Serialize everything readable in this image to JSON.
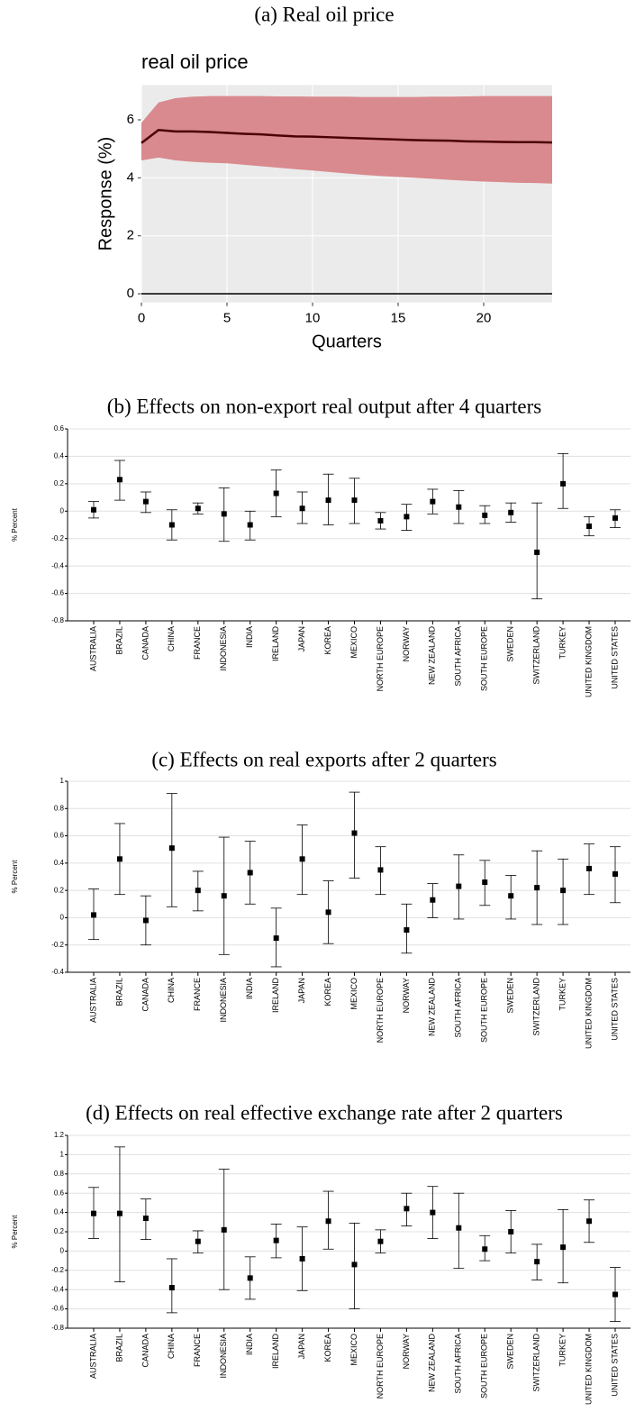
{
  "chart_data": [
    {
      "type": "line",
      "caption": "(a) Real oil price",
      "title": "real oil price",
      "y_label": "Response (%)",
      "x_label": "Quarters",
      "x": [
        0,
        1,
        2,
        3,
        4,
        5,
        6,
        7,
        8,
        9,
        10,
        11,
        12,
        13,
        14,
        15,
        16,
        17,
        18,
        19,
        20,
        21,
        22,
        23,
        24
      ],
      "values": [
        5.2,
        5.65,
        5.6,
        5.6,
        5.58,
        5.55,
        5.52,
        5.5,
        5.46,
        5.43,
        5.42,
        5.4,
        5.38,
        5.36,
        5.34,
        5.32,
        5.3,
        5.29,
        5.28,
        5.26,
        5.25,
        5.24,
        5.23,
        5.23,
        5.22
      ],
      "upper": [
        5.9,
        6.6,
        6.75,
        6.8,
        6.82,
        6.82,
        6.82,
        6.82,
        6.81,
        6.81,
        6.8,
        6.8,
        6.8,
        6.79,
        6.79,
        6.79,
        6.79,
        6.8,
        6.8,
        6.81,
        6.82,
        6.82,
        6.82,
        6.82,
        6.82
      ],
      "lower": [
        4.6,
        4.7,
        4.6,
        4.55,
        4.52,
        4.5,
        4.45,
        4.4,
        4.35,
        4.3,
        4.25,
        4.2,
        4.15,
        4.1,
        4.06,
        4.03,
        4.0,
        3.97,
        3.93,
        3.9,
        3.87,
        3.85,
        3.83,
        3.82,
        3.8
      ],
      "color": "#4a0000",
      "band_color": "#d98a8e",
      "hline": 0,
      "xlim": [
        0,
        24
      ],
      "xticks": [
        0,
        5,
        10,
        15,
        20
      ],
      "ylim": [
        -0.3,
        7.2
      ],
      "yticks": [
        0,
        2,
        4,
        6
      ]
    },
    {
      "type": "errorbar",
      "caption": "(b) Effects on non-export real output after 4 quarters",
      "y_label": "% Percent",
      "categories": [
        "AUSTRALIA",
        "BRAZIL",
        "CANADA",
        "CHINA",
        "FRANCE",
        "INDONESIA",
        "INDIA",
        "IRELAND",
        "JAPAN",
        "KOREA",
        "MEXICO",
        "NORTH EUROPE",
        "NORWAY",
        "NEW ZEALAND",
        "SOUTH AFRICA",
        "SOUTH EUROPE",
        "SWEDEN",
        "SWITZERLAND",
        "TURKEY",
        "UNITED KINGDOM",
        "UNITED STATES"
      ],
      "values": [
        0.01,
        0.23,
        0.07,
        -0.1,
        0.02,
        -0.02,
        -0.1,
        0.13,
        0.02,
        0.08,
        0.08,
        -0.07,
        -0.04,
        0.07,
        0.03,
        -0.03,
        -0.01,
        -0.3,
        0.2,
        -0.11,
        -0.05
      ],
      "lower": [
        -0.05,
        0.08,
        -0.01,
        -0.21,
        -0.02,
        -0.22,
        -0.21,
        -0.04,
        -0.09,
        -0.1,
        -0.09,
        -0.13,
        -0.14,
        -0.02,
        -0.09,
        -0.09,
        -0.08,
        -0.64,
        0.02,
        -0.18,
        -0.12
      ],
      "upper": [
        0.07,
        0.37,
        0.14,
        0.01,
        0.06,
        0.17,
        0.0,
        0.3,
        0.14,
        0.27,
        0.24,
        -0.01,
        0.05,
        0.16,
        0.15,
        0.04,
        0.06,
        0.06,
        0.42,
        -0.04,
        0.01
      ],
      "color": "#000000",
      "ylim": [
        -0.8,
        0.6
      ],
      "yticks": [
        -0.8,
        -0.6,
        -0.4,
        -0.2,
        0,
        0.2,
        0.4,
        0.6
      ],
      "grid": true
    },
    {
      "type": "errorbar",
      "caption": "(c) Effects on real exports after 2 quarters",
      "y_label": "% Percent",
      "categories": [
        "AUSTRALIA",
        "BRAZIL",
        "CANADA",
        "CHINA",
        "FRANCE",
        "INDONESIA",
        "INDIA",
        "IRELAND",
        "JAPAN",
        "KOREA",
        "MEXICO",
        "NORTH EUROPE",
        "NORWAY",
        "NEW ZEALAND",
        "SOUTH AFRICA",
        "SOUTH EUROPE",
        "SWEDEN",
        "SWITZERLAND",
        "TURKEY",
        "UNITED KINGDOM",
        "UNITED STATES"
      ],
      "values": [
        0.02,
        0.43,
        -0.02,
        0.51,
        0.2,
        0.16,
        0.33,
        -0.15,
        0.43,
        0.04,
        0.62,
        0.35,
        -0.09,
        0.13,
        0.23,
        0.26,
        0.16,
        0.22,
        0.2,
        0.36,
        0.32
      ],
      "lower": [
        -0.16,
        0.17,
        -0.2,
        0.08,
        0.05,
        -0.27,
        0.1,
        -0.36,
        0.17,
        -0.19,
        0.29,
        0.17,
        -0.26,
        0.0,
        -0.01,
        0.09,
        -0.01,
        -0.05,
        -0.05,
        0.17,
        0.11
      ],
      "upper": [
        0.21,
        0.69,
        0.16,
        0.91,
        0.34,
        0.59,
        0.56,
        0.07,
        0.68,
        0.27,
        0.92,
        0.52,
        0.1,
        0.25,
        0.46,
        0.42,
        0.31,
        0.49,
        0.43,
        0.54,
        0.52
      ],
      "color": "#000000",
      "ylim": [
        -0.4,
        1
      ],
      "yticks": [
        -0.4,
        -0.2,
        0,
        0.2,
        0.4,
        0.6,
        0.8,
        1
      ],
      "grid": true
    },
    {
      "type": "errorbar",
      "caption": "(d) Effects on real effective exchange rate after 2 quarters",
      "y_label": "% Percent",
      "categories": [
        "AUSTRALIA",
        "BRAZIL",
        "CANADA",
        "CHINA",
        "FRANCE",
        "INDONESIA",
        "INDIA",
        "IRELAND",
        "JAPAN",
        "KOREA",
        "MEXICO",
        "NORTH EUROPE",
        "NORWAY",
        "NEW ZEALAND",
        "SOUTH AFRICA",
        "SOUTH EUROPE",
        "SWEDEN",
        "SWITZERLAND",
        "TURKEY",
        "UNITED KINGDOM",
        "UNITED STATES"
      ],
      "values": [
        0.39,
        0.39,
        0.34,
        -0.38,
        0.1,
        0.22,
        -0.28,
        0.11,
        -0.08,
        0.31,
        -0.14,
        0.1,
        0.44,
        0.4,
        0.24,
        0.02,
        0.2,
        -0.11,
        0.04,
        0.31,
        -0.45
      ],
      "lower": [
        0.13,
        -0.32,
        0.12,
        -0.64,
        -0.02,
        -0.4,
        -0.5,
        -0.07,
        -0.41,
        0.02,
        -0.6,
        -0.02,
        0.26,
        0.13,
        -0.18,
        -0.1,
        -0.02,
        -0.3,
        -0.33,
        0.09,
        -0.73
      ],
      "upper": [
        0.66,
        1.08,
        0.54,
        -0.08,
        0.21,
        0.85,
        -0.06,
        0.28,
        0.25,
        0.62,
        0.29,
        0.22,
        0.6,
        0.67,
        0.6,
        0.16,
        0.42,
        0.07,
        0.43,
        0.53,
        -0.17
      ],
      "color": "#000000",
      "ylim": [
        -0.8,
        1.2
      ],
      "yticks": [
        -0.8,
        -0.6,
        -0.4,
        -0.2,
        0,
        0.2,
        0.4,
        0.6,
        0.8,
        1,
        1.2
      ],
      "grid": true
    }
  ]
}
